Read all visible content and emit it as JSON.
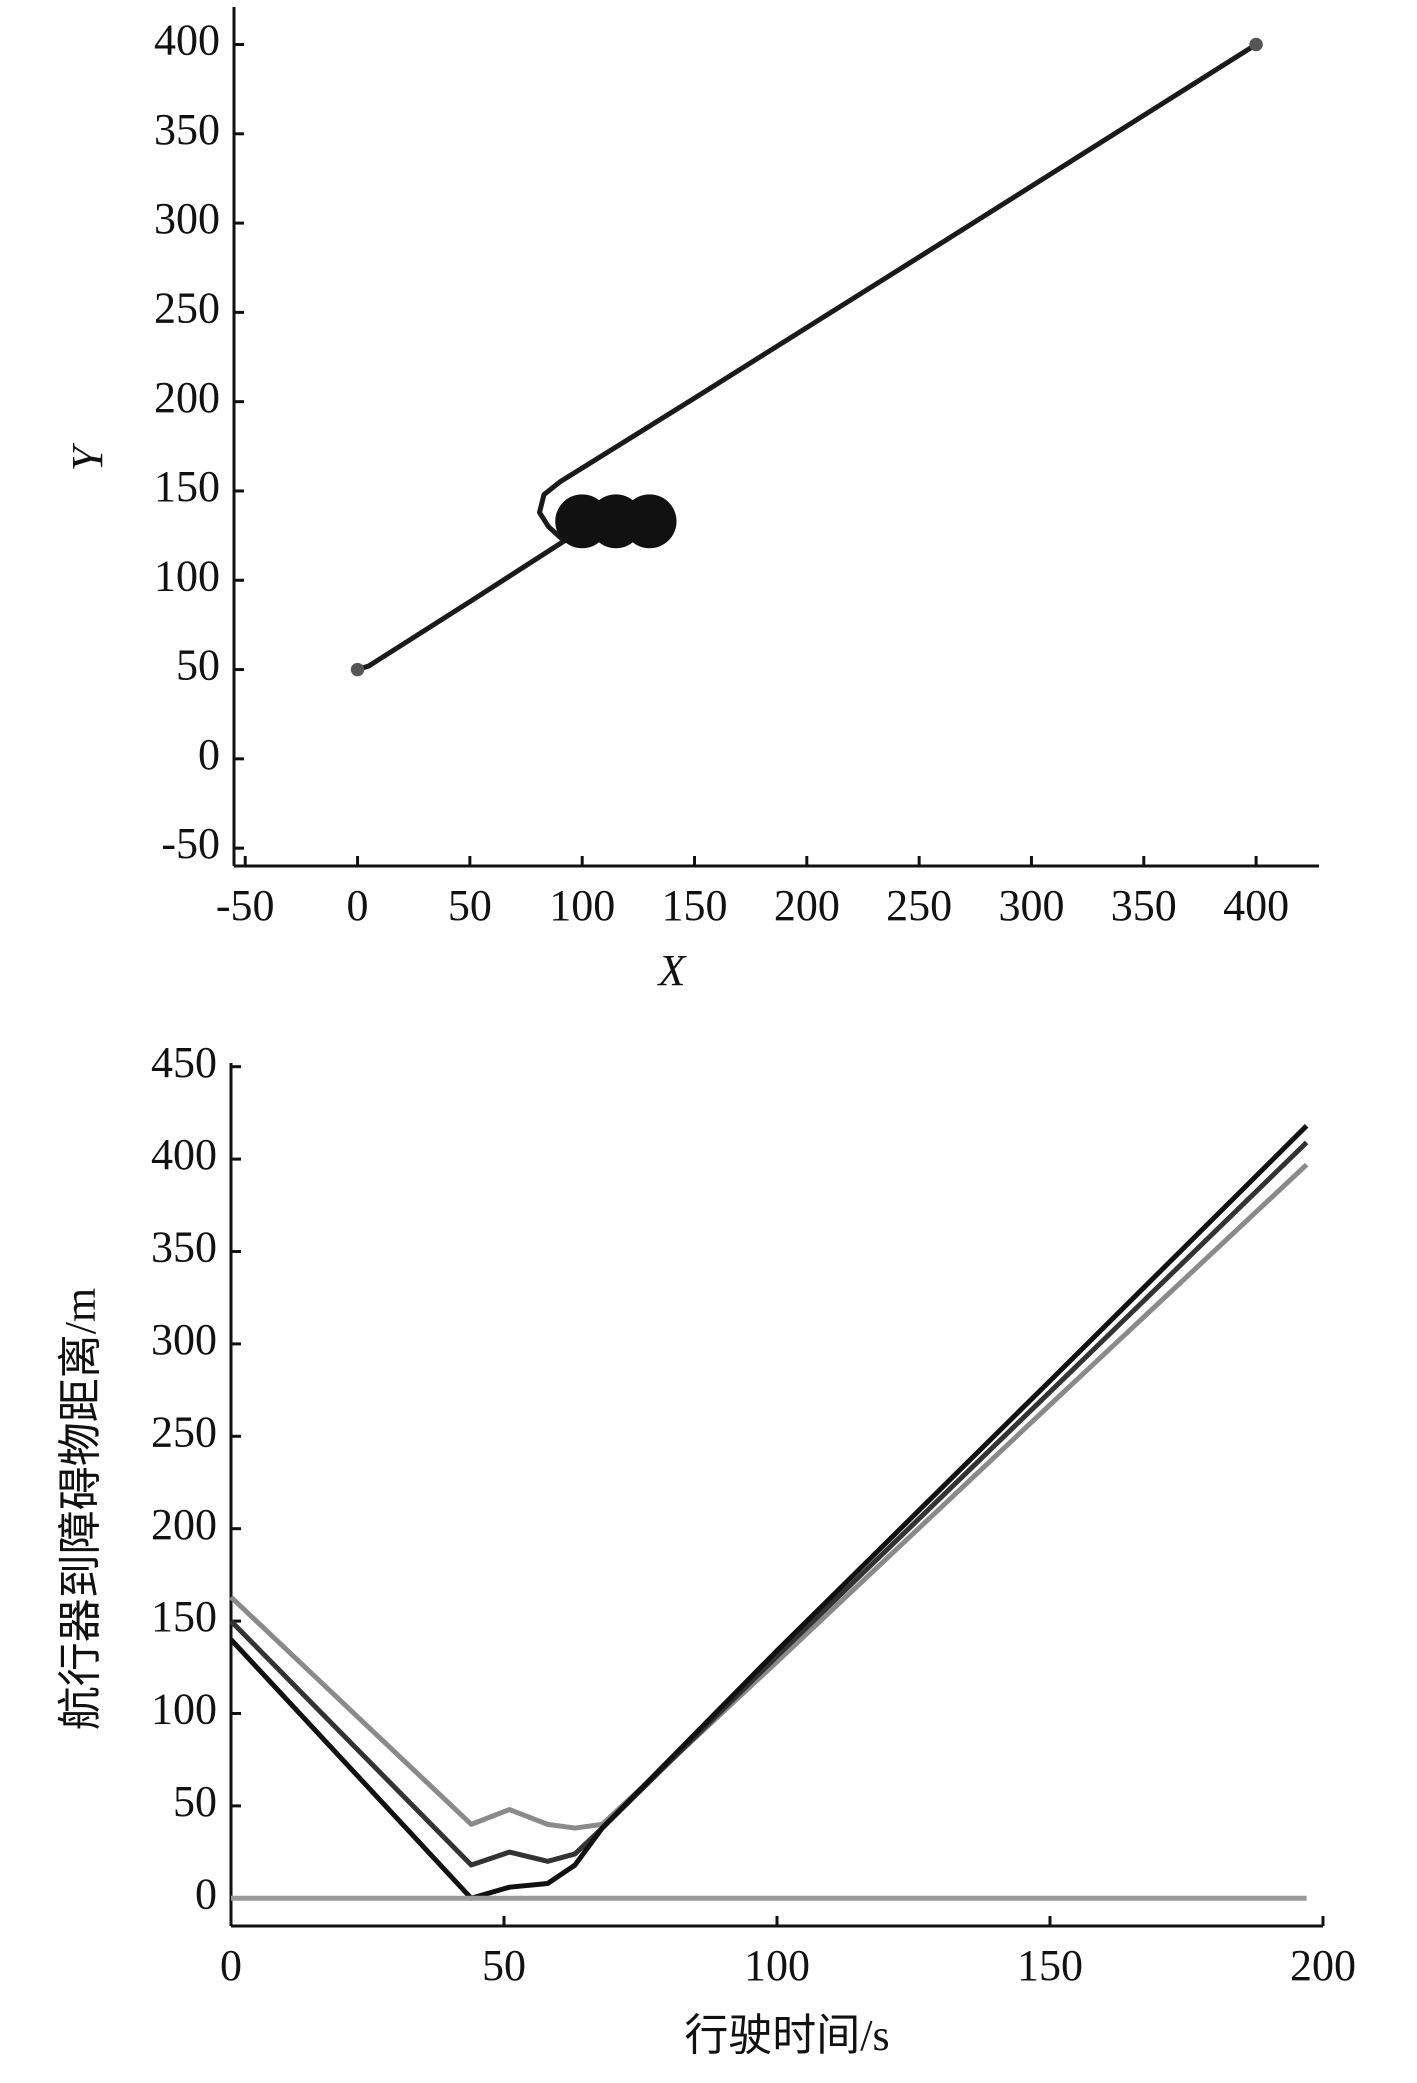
{
  "chart_data": [
    {
      "type": "line",
      "xlabel": "X",
      "ylabel": "Y",
      "xlim": [
        -55,
        428
      ],
      "ylim": [
        -60,
        421
      ],
      "xticks": [
        -50,
        0,
        50,
        100,
        150,
        200,
        250,
        300,
        350,
        400
      ],
      "yticks": [
        -50,
        0,
        50,
        100,
        150,
        200,
        250,
        300,
        350,
        400
      ],
      "series": [
        {
          "type": "line",
          "color": "#1a1a1a",
          "x": [
            0,
            5,
            20,
            50,
            92,
            85,
            81,
            83,
            90,
            150,
            250,
            400
          ],
          "values": [
            50,
            52,
            64,
            88,
            122,
            130,
            138,
            148,
            155,
            202,
            281,
            400
          ]
        },
        {
          "type": "scatter",
          "color": "#111111",
          "x": [
            100,
            115,
            130
          ],
          "values": [
            133,
            133,
            133
          ],
          "size": [
            12,
            12,
            12
          ]
        },
        {
          "type": "scatter",
          "color": "#555555",
          "x": [
            0,
            400
          ],
          "values": [
            50,
            400
          ],
          "size": [
            3,
            3
          ]
        }
      ]
    },
    {
      "type": "line",
      "xlabel": "行驶时间/s",
      "ylabel": "航行器到障碍物距离/m",
      "xlim": [
        0,
        200
      ],
      "ylim": [
        -15,
        452
      ],
      "xticks": [
        0,
        50,
        100,
        150,
        200
      ],
      "yticks": [
        0,
        50,
        100,
        150,
        200,
        250,
        300,
        350,
        400,
        450
      ],
      "x": [
        0,
        44,
        51,
        58,
        63,
        68,
        100,
        150,
        197
      ],
      "series": [
        {
          "color": "#8a8a8a",
          "values": [
            163,
            40,
            48,
            40,
            38,
            40,
            128,
            267,
            397
          ]
        },
        {
          "color": "#333333",
          "values": [
            150,
            18,
            25,
            20,
            24,
            38,
            131,
            274,
            409
          ]
        },
        {
          "color": "#111111",
          "values": [
            140,
            0,
            6,
            8,
            18,
            38,
            134,
            280,
            418
          ]
        },
        {
          "color": "#9a9a9a",
          "values": [
            0,
            0,
            0,
            0,
            0,
            0,
            0,
            0,
            0
          ]
        }
      ]
    }
  ]
}
